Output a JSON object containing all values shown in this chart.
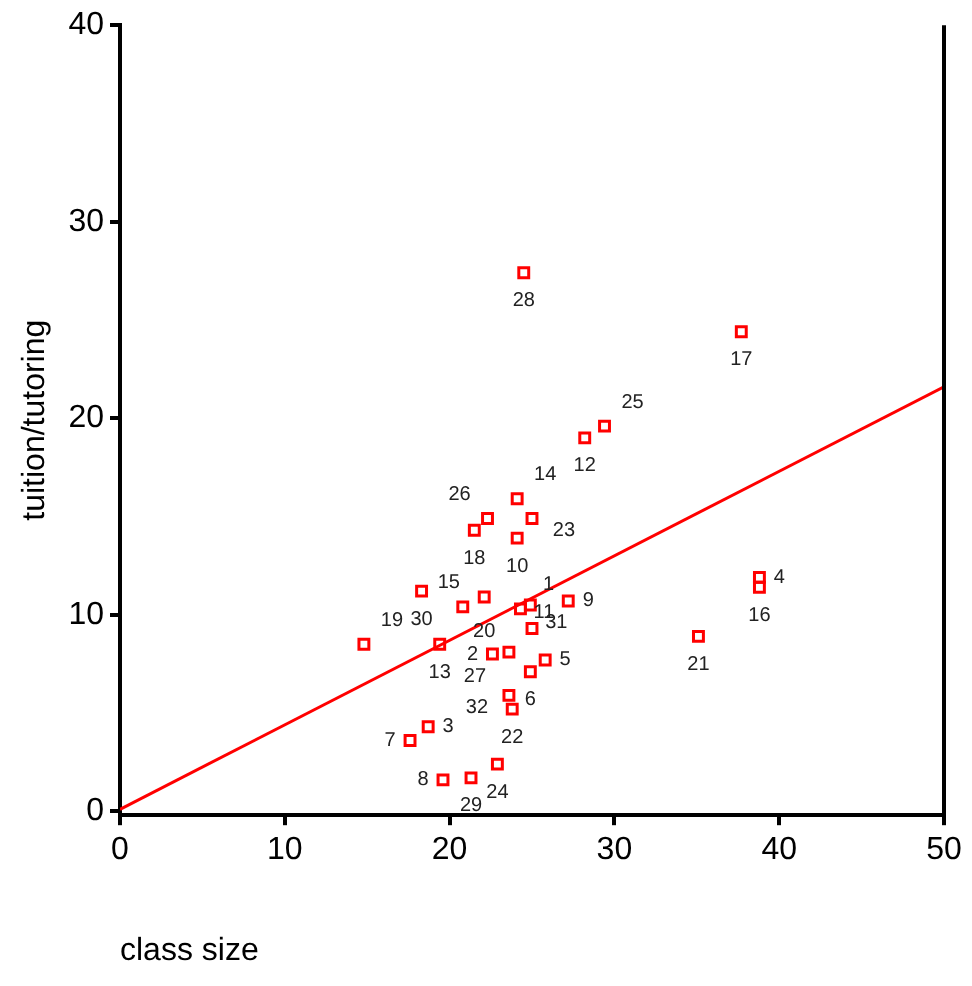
{
  "chart_data": {
    "type": "scatter",
    "xlabel": "class size",
    "ylabel": "tuition/tutoring",
    "xlim": [
      0,
      50
    ],
    "ylim": [
      -0.2,
      40
    ],
    "xticks": [
      0,
      10,
      20,
      30,
      40,
      50
    ],
    "yticks": [
      0,
      10,
      20,
      30,
      40
    ],
    "grid": false,
    "legend": false,
    "marker": "square",
    "series": [
      {
        "color": "#ff0000",
        "x": [
          24.5,
          28.2,
          29.4,
          24.1,
          22.3,
          21.5,
          25.0,
          24.1,
          18.3,
          22.1,
          20.8,
          24.3,
          24.9,
          27.2,
          14.8,
          19.4,
          25.0,
          22.6,
          23.6,
          25.8,
          24.9,
          23.6,
          23.8,
          18.7,
          17.6,
          22.9,
          21.3,
          19.6,
          37.7,
          38.8,
          38.8,
          35.1
        ],
        "values": [
          27.4,
          19.0,
          19.6,
          15.9,
          14.9,
          14.3,
          14.9,
          13.9,
          11.2,
          10.9,
          10.4,
          10.3,
          10.5,
          10.7,
          8.5,
          8.5,
          9.3,
          8.0,
          8.1,
          7.7,
          7.1,
          5.9,
          5.2,
          4.3,
          3.6,
          2.4,
          1.7,
          1.6,
          24.4,
          11.9,
          11.4,
          8.9
        ]
      },
      {
        "type": "line",
        "color": "#ff0000",
        "marker": "none",
        "x": [
          0,
          50
        ],
        "values": [
          0.1,
          21.6
        ]
      }
    ],
    "annotations": [
      {
        "text": "28",
        "x": 24.5,
        "y": 27.4
      },
      {
        "text": "12",
        "x": 28.2,
        "y": 19.0
      },
      {
        "text": "25",
        "x": 29.4,
        "y": 19.6
      },
      {
        "text": "14",
        "x": 24.1,
        "y": 15.9
      },
      {
        "text": "26",
        "x": 22.3,
        "y": 14.9
      },
      {
        "text": "18",
        "x": 21.5,
        "y": 14.3
      },
      {
        "text": "23",
        "x": 25.0,
        "y": 14.9
      },
      {
        "text": "10",
        "x": 24.1,
        "y": 13.9
      },
      {
        "text": "30",
        "x": 18.3,
        "y": 11.2
      },
      {
        "text": "20",
        "x": 22.1,
        "y": 10.9
      },
      {
        "text": "15",
        "x": 20.8,
        "y": 10.4
      },
      {
        "text": "1",
        "x": 24.3,
        "y": 10.3
      },
      {
        "text": "31",
        "x": 24.9,
        "y": 10.5
      },
      {
        "text": "9",
        "x": 27.2,
        "y": 10.7
      },
      {
        "text": "19",
        "x": 14.8,
        "y": 8.5
      },
      {
        "text": "13",
        "x": 19.4,
        "y": 8.5
      },
      {
        "text": "11",
        "x": 25.0,
        "y": 9.3
      },
      {
        "text": "2",
        "x": 22.6,
        "y": 8.0
      },
      {
        "text": "27",
        "x": 23.6,
        "y": 8.1
      },
      {
        "text": "5",
        "x": 25.8,
        "y": 7.7
      },
      {
        "text": "6",
        "x": 24.9,
        "y": 7.1
      },
      {
        "text": "32",
        "x": 23.6,
        "y": 5.9
      },
      {
        "text": "22",
        "x": 23.8,
        "y": 5.2
      },
      {
        "text": "3",
        "x": 18.7,
        "y": 4.3
      },
      {
        "text": "7",
        "x": 17.6,
        "y": 3.6
      },
      {
        "text": "24",
        "x": 22.9,
        "y": 2.4
      },
      {
        "text": "29",
        "x": 21.3,
        "y": 1.7
      },
      {
        "text": "8",
        "x": 19.6,
        "y": 1.6
      },
      {
        "text": "17",
        "x": 37.7,
        "y": 24.4
      },
      {
        "text": "4",
        "x": 38.8,
        "y": 11.9
      },
      {
        "text": "16",
        "x": 38.8,
        "y": 11.4
      },
      {
        "text": "21",
        "x": 35.1,
        "y": 8.9
      }
    ]
  }
}
